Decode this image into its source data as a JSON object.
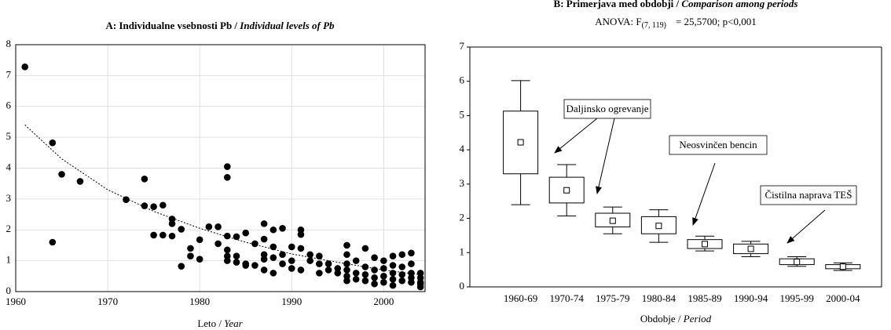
{
  "chart_data": [
    {
      "type": "scatter",
      "title": [
        "A: Individualne vsebnosti Pb /",
        "Individual levels of Pb"
      ],
      "x_label": [
        "Leto /",
        "Year"
      ],
      "x": [
        1961,
        1964,
        1964,
        1965,
        1967,
        1972,
        1974,
        1974,
        1975,
        1975,
        1976,
        1976,
        1977,
        1977,
        1977,
        1978,
        1978,
        1979,
        1979,
        1980,
        1980,
        1981,
        1982,
        1982,
        1983,
        1983,
        1983,
        1983,
        1983,
        1983,
        1984,
        1984,
        1984,
        1985,
        1985,
        1985,
        1986,
        1986,
        1987,
        1987,
        1987,
        1987,
        1987,
        1988,
        1988,
        1988,
        1988,
        1989,
        1989,
        1989,
        1990,
        1990,
        1990,
        1991,
        1991,
        1991,
        1991,
        1992,
        1992,
        1993,
        1993,
        1993,
        1994,
        1994,
        1995,
        1995,
        1996,
        1996,
        1996,
        1996,
        1996,
        1996,
        1997,
        1997,
        1997,
        1998,
        1998,
        1998,
        1998,
        1999,
        1999,
        1999,
        1999,
        2000,
        2000,
        2000,
        2000,
        2001,
        2001,
        2001,
        2001,
        2001,
        2002,
        2002,
        2002,
        2002,
        2003,
        2003,
        2003,
        2003,
        2003,
        2004,
        2004,
        2004,
        2004,
        2004
      ],
      "values": [
        7.28,
        4.82,
        1.6,
        3.8,
        3.57,
        2.98,
        3.65,
        2.78,
        2.75,
        1.83,
        2.8,
        1.83,
        2.35,
        2.2,
        1.8,
        2.02,
        0.82,
        1.4,
        1.15,
        1.68,
        1.05,
        2.1,
        2.1,
        1.55,
        4.05,
        3.7,
        1.8,
        1.35,
        1.15,
        1.0,
        1.78,
        1.15,
        0.95,
        1.9,
        0.9,
        0.85,
        1.55,
        0.85,
        2.2,
        1.7,
        1.2,
        1.05,
        0.7,
        2.0,
        1.45,
        1.1,
        0.6,
        2.05,
        1.2,
        0.9,
        1.45,
        1.0,
        0.75,
        2.0,
        1.85,
        1.4,
        0.7,
        1.2,
        1.0,
        1.15,
        0.9,
        0.6,
        0.9,
        0.7,
        0.75,
        0.6,
        1.5,
        1.2,
        0.9,
        0.7,
        0.5,
        0.35,
        1.0,
        0.6,
        0.4,
        1.4,
        0.8,
        0.55,
        0.35,
        1.1,
        0.7,
        0.45,
        0.25,
        1.0,
        0.75,
        0.5,
        0.3,
        1.15,
        0.85,
        0.6,
        0.4,
        0.2,
        1.2,
        0.8,
        0.55,
        0.35,
        1.25,
        0.9,
        0.6,
        0.45,
        0.3,
        0.6,
        0.45,
        0.3,
        0.25,
        0.15
      ],
      "color": "#000000",
      "trend": {
        "x": [
          1961,
          1965,
          1970,
          1975,
          1980,
          1985,
          1990,
          1995,
          2000,
          2004
        ],
        "values": [
          5.4,
          4.3,
          3.3,
          2.6,
          2.05,
          1.6,
          1.22,
          0.95,
          0.7,
          0.55
        ]
      },
      "xlim": [
        1960,
        2004.5
      ],
      "xticks": [
        1960,
        1970,
        1980,
        1990,
        2000
      ],
      "ylim": [
        0,
        8
      ],
      "yticks": [
        0,
        1,
        2,
        3,
        4,
        5,
        6,
        7,
        8
      ],
      "grid": true
    },
    {
      "type": "box",
      "title": [
        "B: Primerjava med obdobji /",
        "Comparison among periods"
      ],
      "subtitle": [
        "ANOVA: F",
        "(7, 119)",
        "= 25,5700; p<0,001"
      ],
      "x_label": [
        "Obdobje /",
        "Period"
      ],
      "categories": [
        "1960-69",
        "1970-74",
        "1975-79",
        "1980-84",
        "1985-89",
        "1990-94",
        "1995-99",
        "2000-04"
      ],
      "mean": [
        4.22,
        2.82,
        1.93,
        1.78,
        1.25,
        1.11,
        0.73,
        0.59
      ],
      "box_low": [
        3.3,
        2.45,
        1.75,
        1.55,
        1.12,
        0.97,
        0.65,
        0.53
      ],
      "box_high": [
        5.13,
        3.2,
        2.15,
        2.05,
        1.38,
        1.25,
        0.82,
        0.65
      ],
      "whisker_low": [
        2.4,
        2.07,
        1.55,
        1.3,
        1.05,
        0.88,
        0.6,
        0.48
      ],
      "whisker_high": [
        6.02,
        3.57,
        2.33,
        2.25,
        1.48,
        1.33,
        0.88,
        0.7
      ],
      "annotations": [
        "Daljinsko ogrevanje",
        "Neosvinčen bencin",
        "Čistilna naprava TEŠ"
      ],
      "ylim": [
        0,
        7
      ],
      "yticks": [
        0,
        1,
        2,
        3,
        4,
        5,
        6,
        7
      ],
      "grid": false
    }
  ]
}
